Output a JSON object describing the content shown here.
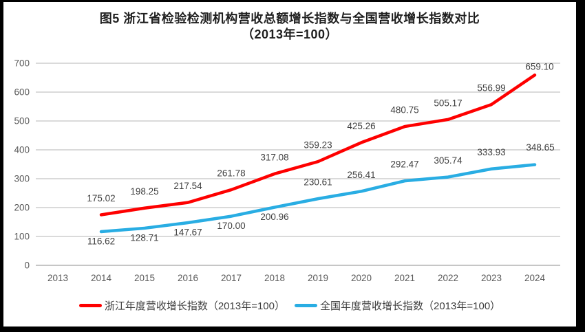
{
  "title": {
    "line1": "图5  浙江省检验检测机构营收总额增长指数与全国营收增长指数对比",
    "line2": "（2013年=100）"
  },
  "chart_data": {
    "type": "line",
    "title": "图5 浙江省检验检测机构营收总额增长指数与全国营收增长指数对比（2013年=100）",
    "categories": [
      "2013",
      "2014",
      "2015",
      "2016",
      "2017",
      "2018",
      "2019",
      "2020",
      "2021",
      "2022",
      "2023",
      "2024"
    ],
    "ylim": [
      0,
      700
    ],
    "yticks": [
      0,
      100,
      200,
      300,
      400,
      500,
      600,
      700
    ],
    "grid": "horizontal",
    "legend_position": "bottom",
    "axis_label_color": "#595959",
    "data_label_color": "#404040",
    "gridline_color": "#dadada",
    "zero_line_color": "#c6c6c6",
    "series": [
      {
        "key": "zhejiang",
        "name": "浙江年度营收增长指数（2013年=100）",
        "color": "#fe0000",
        "start_category": "2014",
        "values": [
          175.02,
          198.25,
          217.54,
          261.78,
          317.08,
          359.23,
          425.26,
          480.75,
          505.17,
          556.99,
          659.1
        ],
        "label_position": "above",
        "label_offset_overrides": {
          "10": [
            7,
            -12
          ]
        }
      },
      {
        "key": "national",
        "name": "全国年度营收增长指数（2013年=100）",
        "color": "#29ade3",
        "start_category": "2014",
        "values": [
          116.62,
          128.71,
          147.67,
          170.0,
          200.96,
          230.61,
          256.41,
          292.47,
          305.74,
          333.93,
          348.65
        ],
        "label_positions": [
          "below",
          "below",
          "below",
          "below",
          "below",
          "above",
          "above",
          "above",
          "above",
          "above",
          "above"
        ],
        "label_offset_overrides": {
          "10": [
            8,
            -25
          ]
        }
      }
    ]
  }
}
